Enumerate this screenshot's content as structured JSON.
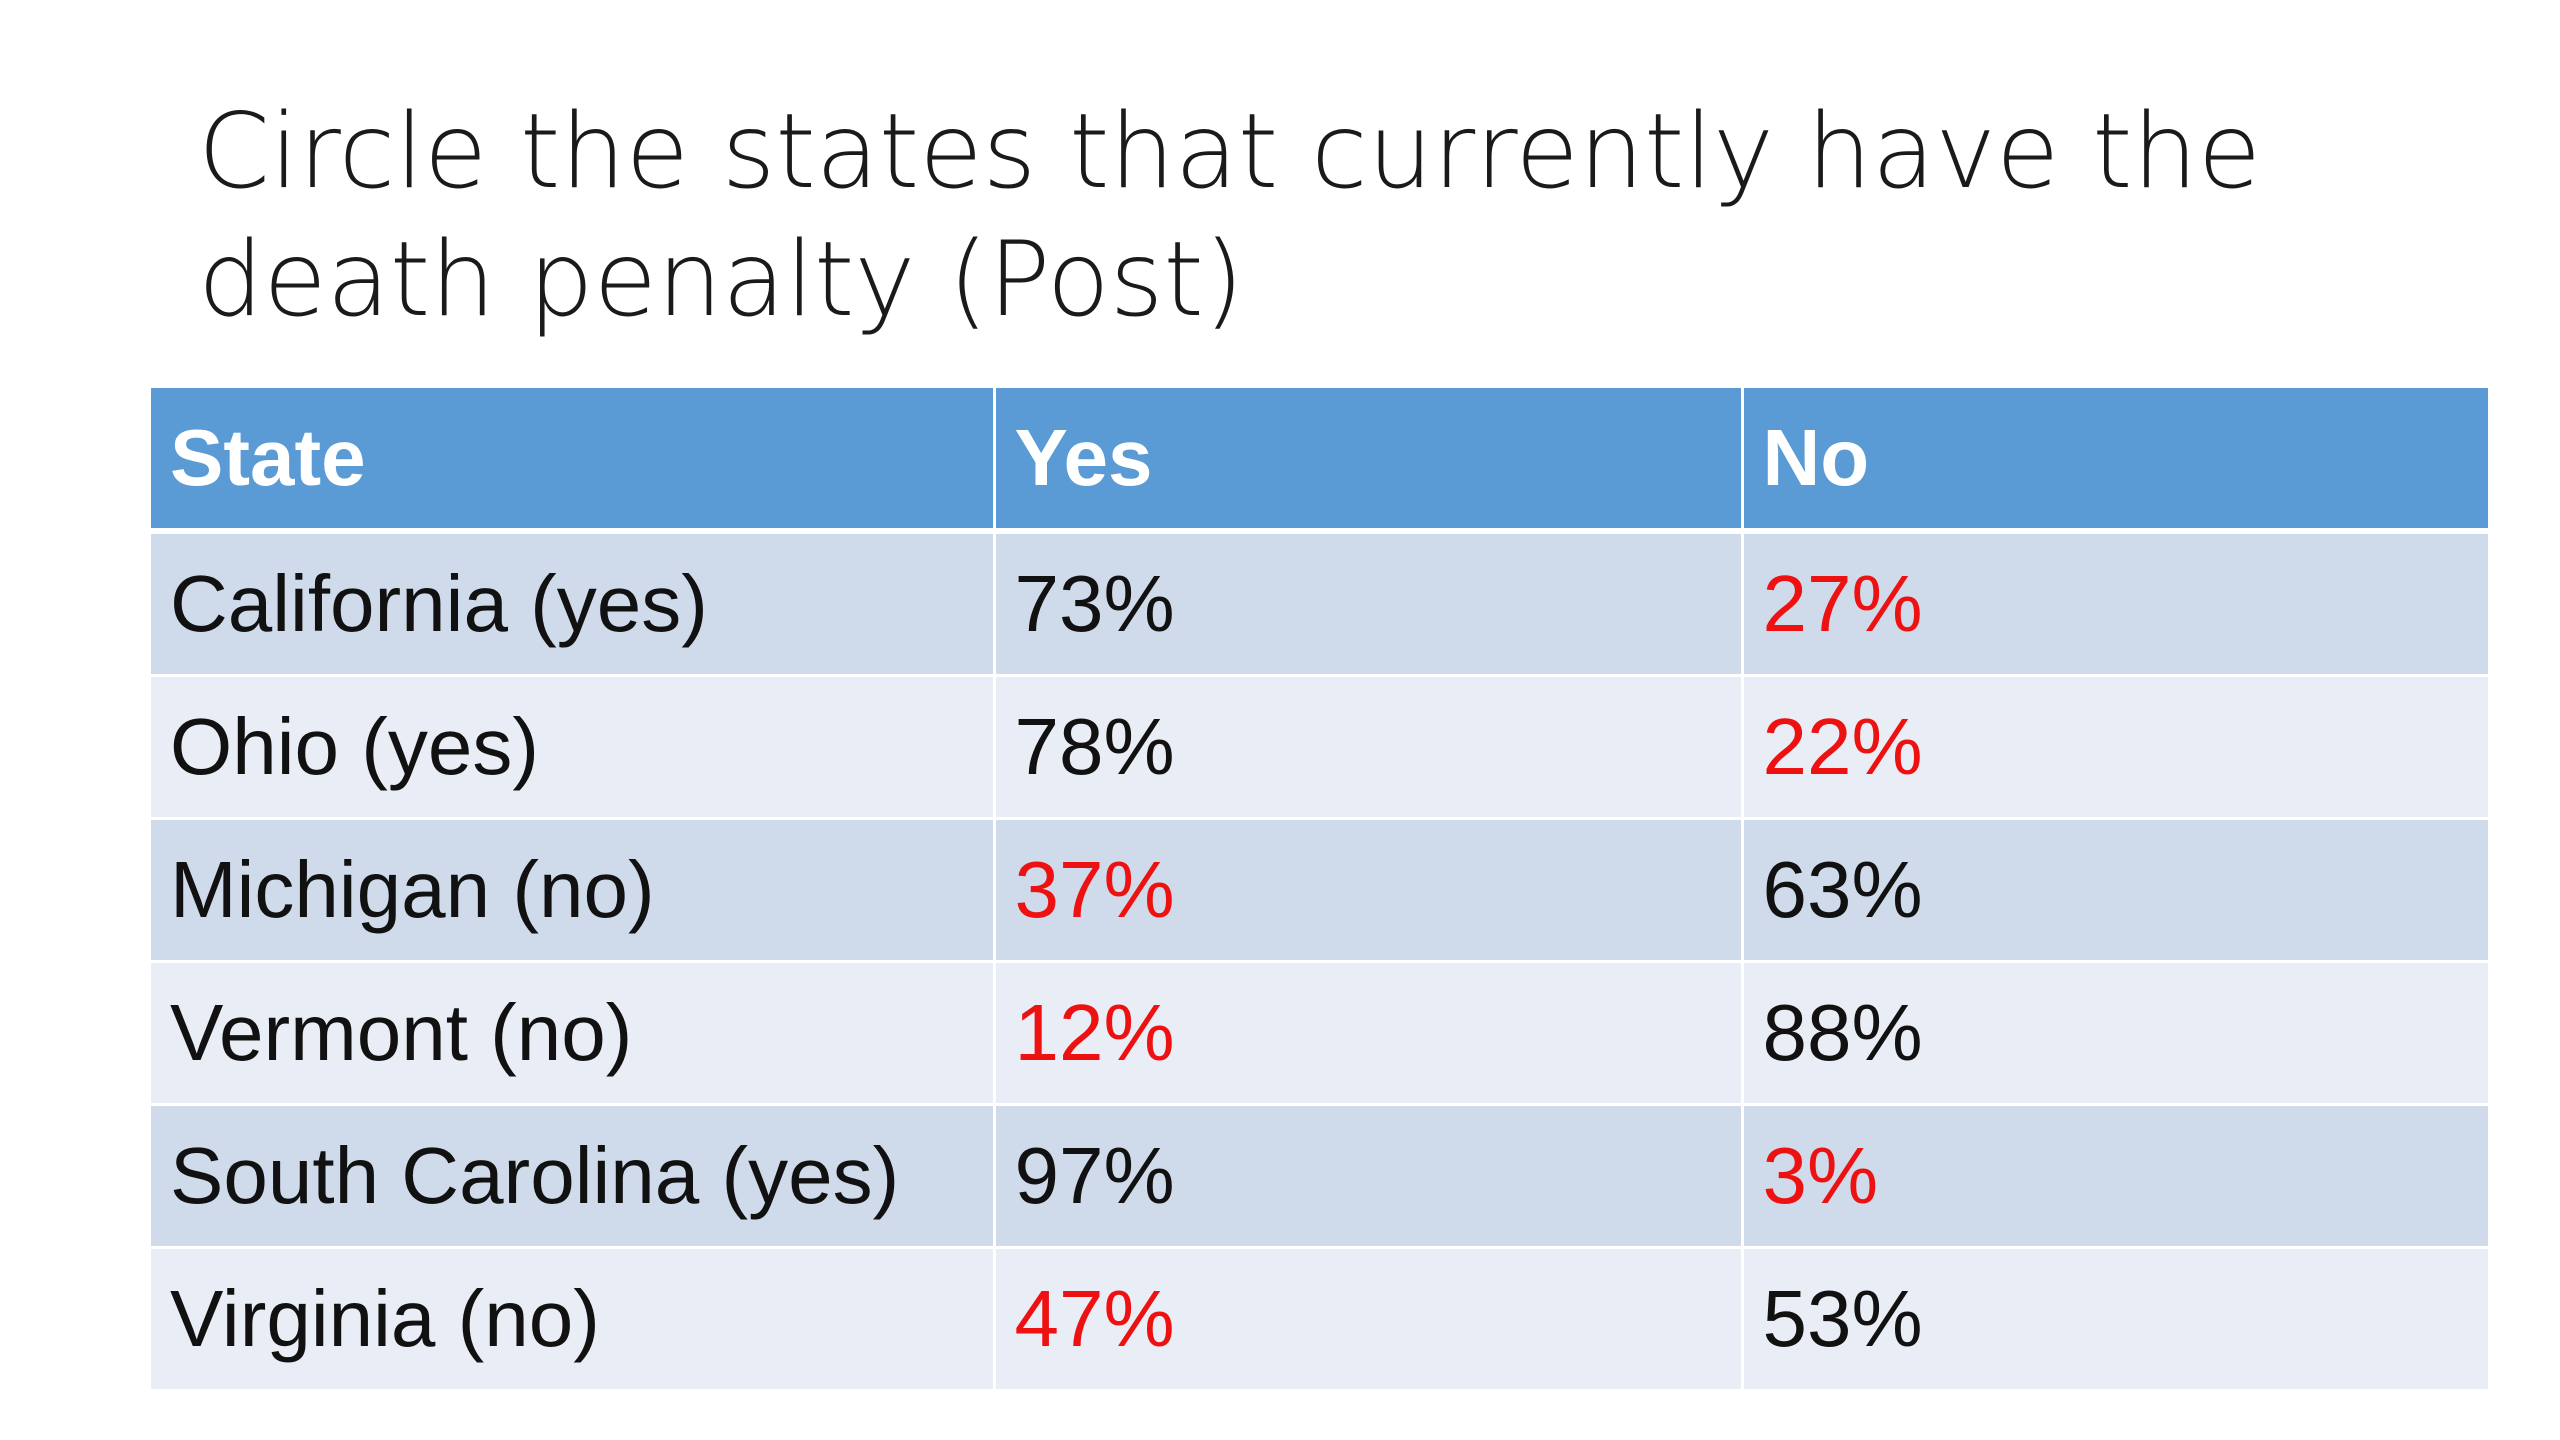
{
  "slide": {
    "title": "Circle the states that currently have the death penalty (Post)"
  },
  "table": {
    "headers": [
      "State",
      "Yes",
      "No"
    ],
    "rows": [
      {
        "state": "California (yes)",
        "yes": "73%",
        "no": "27%",
        "highlight": "no"
      },
      {
        "state": "Ohio (yes)",
        "yes": "78%",
        "no": "22%",
        "highlight": "no"
      },
      {
        "state": "Michigan (no)",
        "yes": "37%",
        "no": "63%",
        "highlight": "yes"
      },
      {
        "state": "Vermont (no)",
        "yes": "12%",
        "no": "88%",
        "highlight": "yes"
      },
      {
        "state": "South Carolina (yes)",
        "yes": "97%",
        "no": "3%",
        "highlight": "no"
      },
      {
        "state": "Virginia (no)",
        "yes": "47%",
        "no": "53%",
        "highlight": "yes"
      }
    ]
  },
  "colors": {
    "header_bg": "#5b9bd5",
    "row_odd_bg": "#cfdbeb",
    "row_even_bg": "#e9edf5",
    "highlight_text": "#ee1111"
  }
}
